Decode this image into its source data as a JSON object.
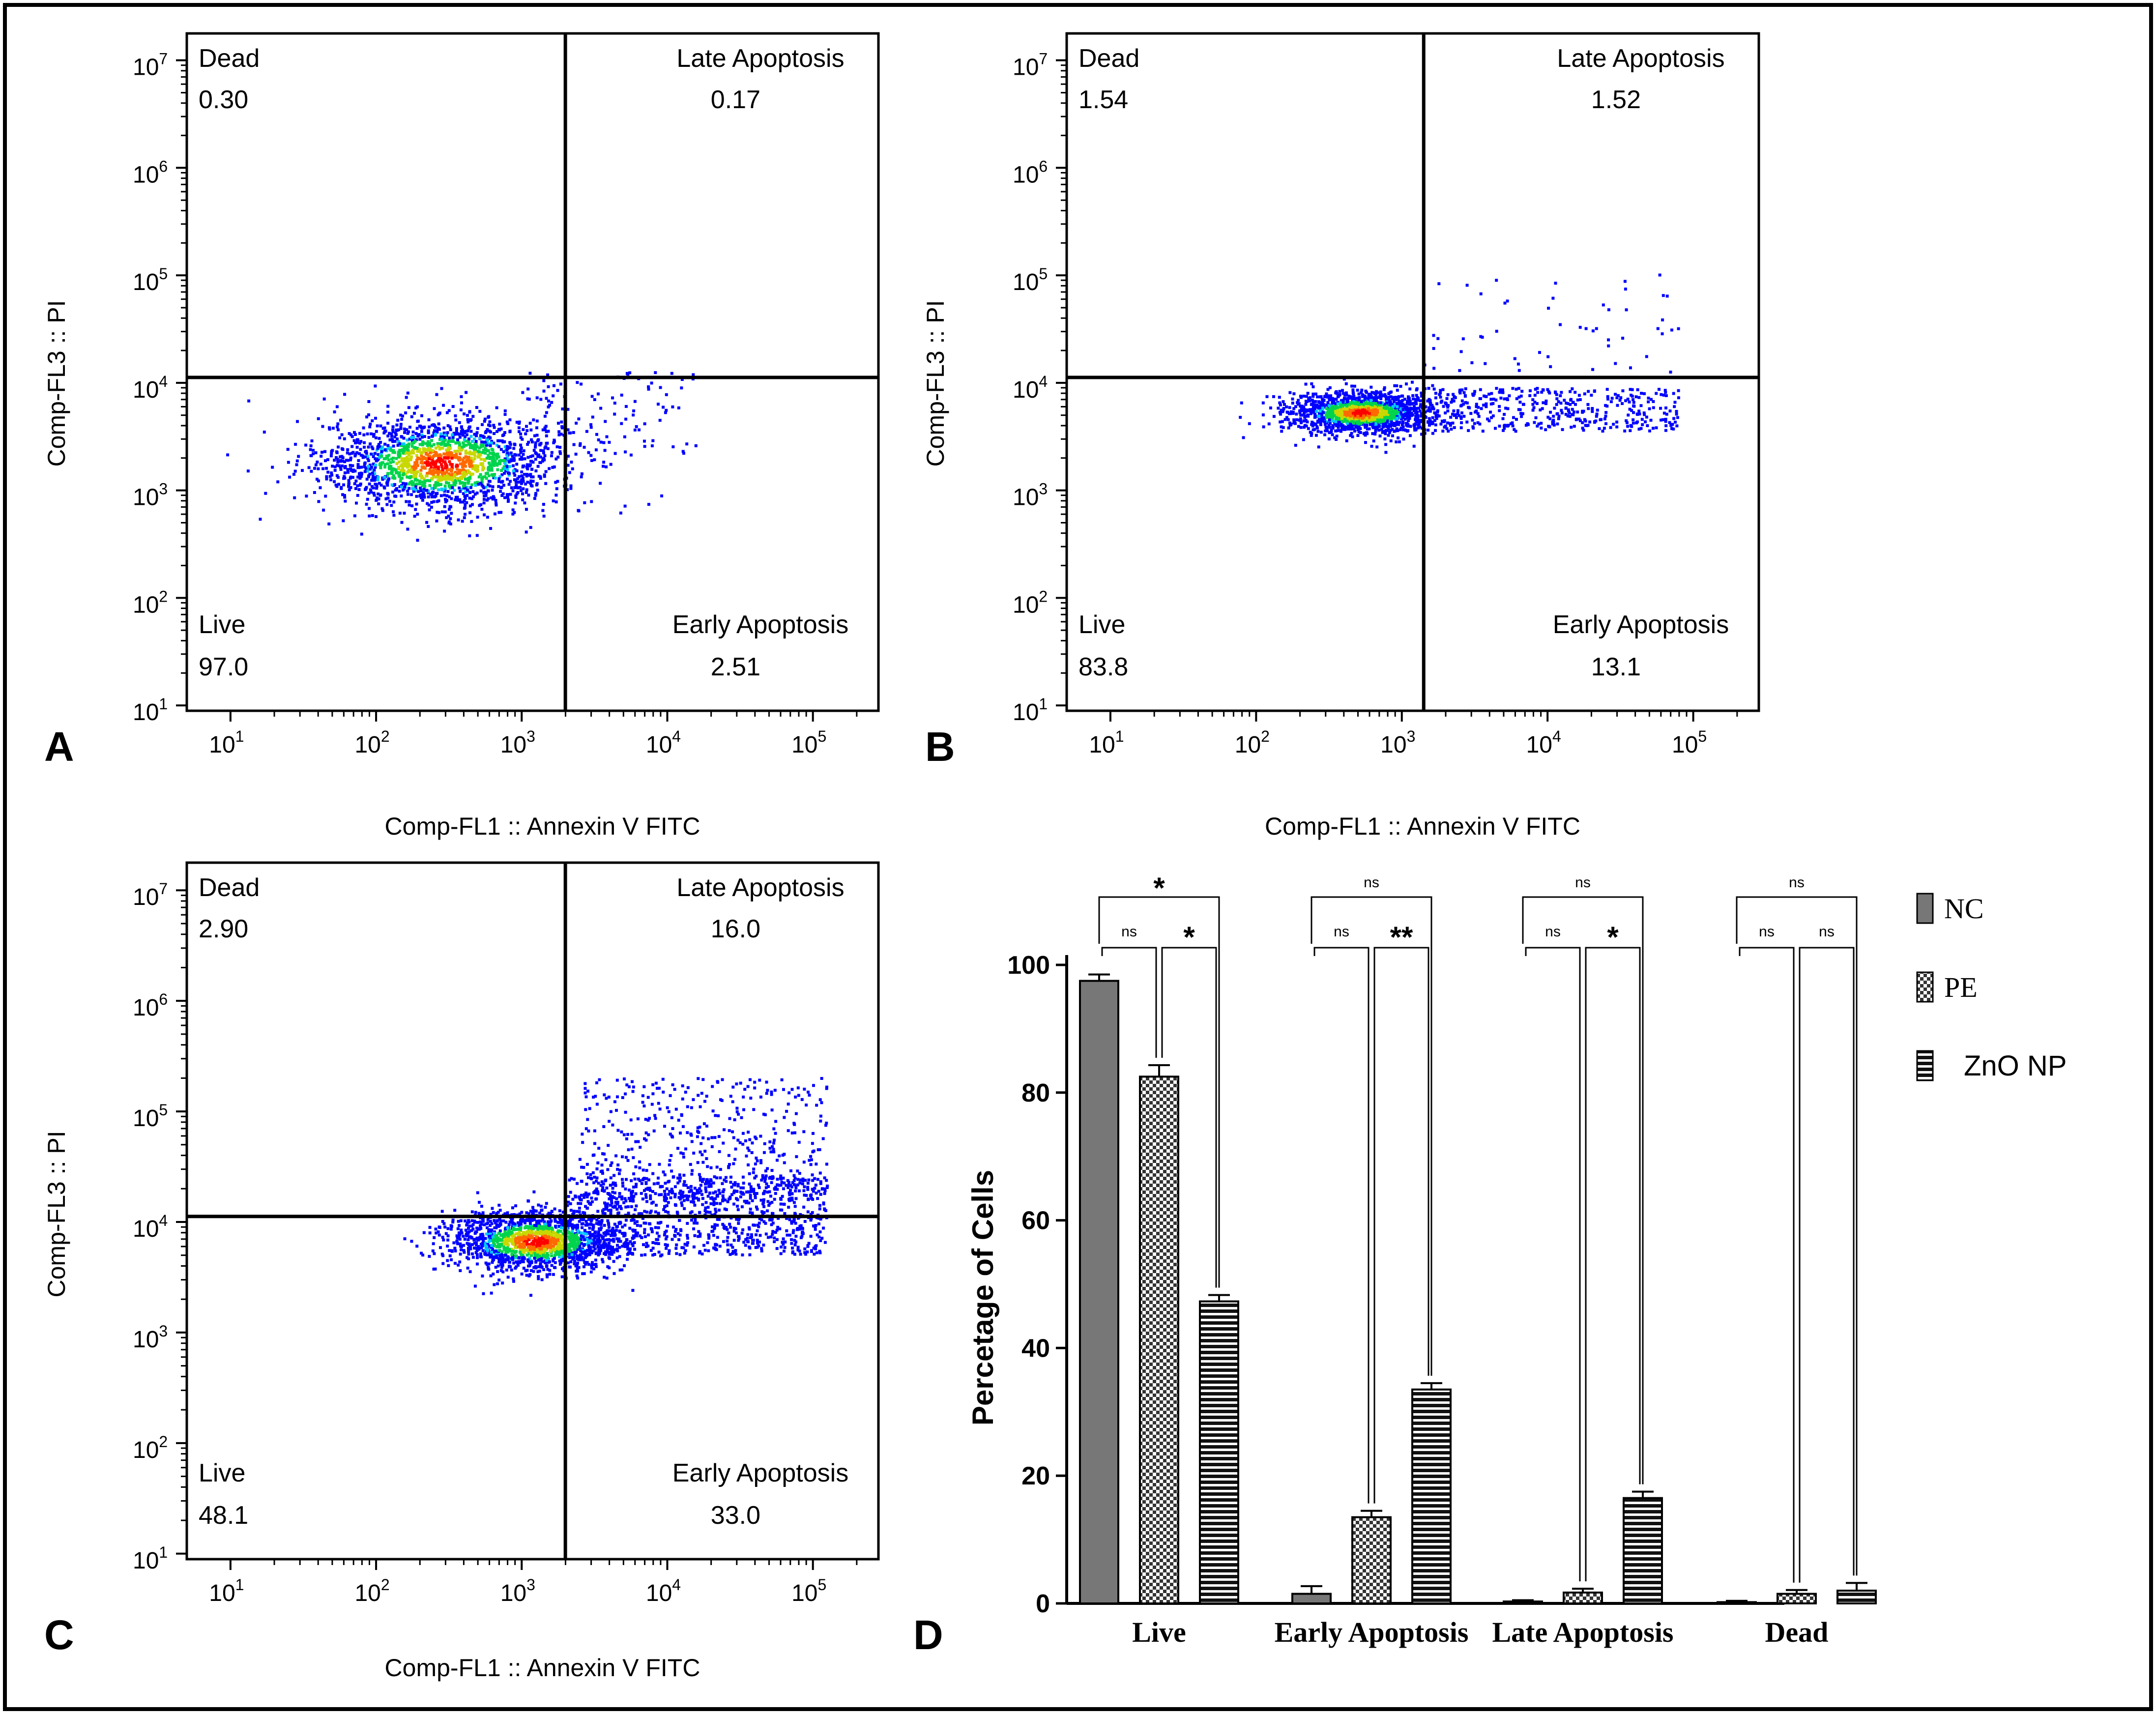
{
  "figure": {
    "panel_labels": [
      "A",
      "B",
      "C",
      "D"
    ],
    "flow_axis": {
      "xlabel": "Comp-FL1 :: Annexin V FITC",
      "ylabel": "Comp-FL3 :: PI",
      "tick_base": "10"
    },
    "quadrant_names": {
      "dead": "Dead",
      "late": "Late Apoptosis",
      "live": "Live",
      "early": "Early Apoptosis"
    }
  },
  "chart_data": [
    {
      "type": "scatter",
      "panel": "A",
      "title": "",
      "xlabel": "Comp-FL1 :: Annexin V FITC",
      "ylabel": "Comp-FL3 :: PI",
      "x_scale": "log",
      "y_scale": "log",
      "xticks": [
        1,
        2,
        3,
        4,
        5
      ],
      "yticks": [
        1,
        2,
        3,
        4,
        5,
        6,
        7
      ],
      "gate_x_log": 3.3,
      "gate_y_log": 4.05,
      "quadrants": {
        "dead": "0.30",
        "late": "0.17",
        "live": "97.0",
        "early": "2.51"
      },
      "population": {
        "center_log": [
          2.45,
          3.25
        ],
        "spread_log": [
          0.42,
          0.22
        ],
        "events": 1900,
        "tail_events": 120,
        "tail_x_range": [
          3.0,
          4.2
        ],
        "tail_y_range": [
          3.3,
          4.1
        ]
      }
    },
    {
      "type": "scatter",
      "panel": "B",
      "title": "",
      "xlabel": "Comp-FL1 :: Annexin V FITC",
      "ylabel": "Comp-FL3 :: PI",
      "x_scale": "log",
      "y_scale": "log",
      "xticks": [
        1,
        2,
        3,
        4,
        5
      ],
      "yticks": [
        1,
        2,
        3,
        4,
        5,
        6,
        7
      ],
      "gate_x_log": 3.15,
      "gate_y_log": 4.05,
      "quadrants": {
        "dead": "1.54",
        "late": "1.52",
        "live": "83.8",
        "early": "13.1"
      },
      "population": {
        "center_log": [
          2.72,
          3.72
        ],
        "spread_log": [
          0.25,
          0.1
        ],
        "events": 1500,
        "tail_events": 420,
        "tail_x_range": [
          3.1,
          4.9
        ],
        "tail_y_range": [
          3.55,
          3.95
        ],
        "high_events": 55,
        "high_x_range": [
          3.1,
          4.9
        ],
        "high_y_range": [
          4.1,
          5.05
        ]
      }
    },
    {
      "type": "scatter",
      "panel": "C",
      "title": "",
      "xlabel": "Comp-FL1 :: Annexin V FITC",
      "ylabel": "Comp-FL3 :: PI",
      "x_scale": "log",
      "y_scale": "log",
      "xticks": [
        1,
        2,
        3,
        4,
        5
      ],
      "yticks": [
        1,
        2,
        3,
        4,
        5,
        6,
        7
      ],
      "gate_x_log": 3.3,
      "gate_y_log": 4.05,
      "quadrants": {
        "dead": "2.90",
        "late": "16.0",
        "live": "48.1",
        "early": "33.0"
      },
      "population": {
        "center_log": [
          3.1,
          3.82
        ],
        "spread_log": [
          0.3,
          0.14
        ],
        "events": 1700,
        "tail_events": 900,
        "tail_x_range": [
          3.3,
          5.1
        ],
        "tail_y_range": [
          3.7,
          4.4
        ],
        "high_events": 500,
        "high_x_range": [
          3.4,
          5.1
        ],
        "high_y_range": [
          4.2,
          5.3
        ]
      }
    },
    {
      "type": "bar",
      "panel": "D",
      "title": "",
      "xlabel": "",
      "ylabel": "Percetage of Cells",
      "ylim": [
        0,
        100
      ],
      "yticks": [
        0,
        20,
        40,
        60,
        80,
        100
      ],
      "categories": [
        "Live",
        "Early Apoptosis",
        "Late Apoptosis",
        "Dead"
      ],
      "series": [
        {
          "name": "NC",
          "values": [
            97.5,
            1.5,
            0.3,
            0.2
          ],
          "errors": [
            1.0,
            1.2,
            0.2,
            0.2
          ],
          "pattern": "gray"
        },
        {
          "name": "PE",
          "values": [
            82.5,
            13.5,
            1.7,
            1.5
          ],
          "errors": [
            1.8,
            1.0,
            0.6,
            0.6
          ],
          "pattern": "checker"
        },
        {
          "name": "ZnO NP",
          "values": [
            47.3,
            33.5,
            16.5,
            2.0
          ],
          "errors": [
            1.0,
            1.0,
            1.0,
            1.2
          ],
          "pattern": "hstripe"
        }
      ],
      "significance": [
        {
          "overall": "*",
          "nc_vs_pe": "ns",
          "pe_vs_zno": "*"
        },
        {
          "overall": "ns",
          "nc_vs_pe": "ns",
          "pe_vs_zno": "**"
        },
        {
          "overall": "ns",
          "nc_vs_pe": "ns",
          "pe_vs_zno": "*"
        },
        {
          "overall": "ns",
          "nc_vs_pe": "ns",
          "pe_vs_zno": "ns"
        }
      ]
    }
  ],
  "colors": {
    "frame": "#000000",
    "nc_fill": "#777777",
    "density": [
      "#0000ff",
      "#00c8ff",
      "#00d44c",
      "#c8d800",
      "#ff6a00",
      "#ff0000"
    ]
  }
}
